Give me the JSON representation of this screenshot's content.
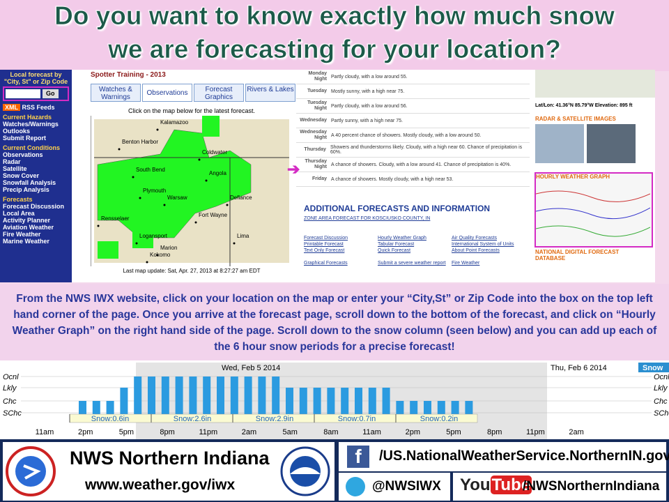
{
  "header": {
    "title_lines": [
      "Do you want to know exactly how much snow",
      "we are forecasting for your location?"
    ]
  },
  "nav": {
    "lookup": "Local forecast by \"City, St\" or Zip Code",
    "go": "Go",
    "xml": "XML",
    "rss": "RSS Feeds",
    "sections": [
      {
        "heading": "Current Hazards",
        "items": [
          "Watches/Warnings",
          "Outlooks",
          "Submit Report"
        ]
      },
      {
        "heading": "Current Conditions",
        "items": [
          "Observations",
          "Radar",
          "Satellite",
          "Snow Cover",
          "Snowfall Analysis",
          "Precip Analysis"
        ]
      },
      {
        "heading": "Forecasts",
        "items": [
          "Forecast Discussion",
          "Local Area",
          "Activity Planner",
          "Aviation Weather",
          "Fire Weather",
          "Marine Weather"
        ]
      }
    ]
  },
  "map": {
    "section": "Spotter Training - 2013",
    "tabs": [
      "Watches & Warnings",
      "Observations",
      "Forecast Graphics",
      "Rivers & Lakes"
    ],
    "instruction": "Click on the map below for the latest forecast.",
    "cities": [
      "Kalamazoo",
      "Benton Harbor",
      "Coldwater",
      "South Bend",
      "Angola",
      "Plymouth",
      "Warsaw",
      "Defiance",
      "Fort Wayne",
      "Rensselaer",
      "Logansport",
      "Lima",
      "Marion",
      "Kokomo"
    ],
    "update": "Last map update: Sat, Apr. 27, 2013 at 8:27:27 am EDT"
  },
  "forecast": {
    "periods": [
      {
        "name": "Monday Night",
        "text": "Partly cloudy, with a low around 55."
      },
      {
        "name": "Tuesday",
        "text": "Mostly sunny, with a high near 75."
      },
      {
        "name": "Tuesday Night",
        "text": "Partly cloudy, with a low around 56."
      },
      {
        "name": "Wednesday",
        "text": "Partly sunny, with a high near 75."
      },
      {
        "name": "Wednesday Night",
        "text": "A 40 percent chance of showers. Mostly cloudy, with a low around 50."
      },
      {
        "name": "Thursday",
        "text": "Showers and thunderstorms likely. Cloudy, with a high near 60. Chance of precipitation is 60%."
      },
      {
        "name": "Thursday Night",
        "text": "A chance of showers. Cloudy, with a low around 41. Chance of precipitation is 40%."
      },
      {
        "name": "Friday",
        "text": "A chance of showers. Mostly cloudy, with a high near 53."
      }
    ],
    "heading": "ADDITIONAL FORECASTS AND INFORMATION",
    "zone": "ZONE AREA FORECAST FOR KOSCIUSKO COUNTY, IN",
    "links": [
      "Forecast Discussion",
      "Printable Forecast",
      "Text Only Forecast",
      "Hourly Weather Graph",
      "Tabular Forecast",
      "Quick Forecast",
      "Air Quality Forecasts",
      "International System of Units",
      "About Point Forecasts",
      "Graphical Forecasts",
      "Submit a severe weather report",
      "Fire Weather"
    ]
  },
  "sidebar": {
    "latlon": "Lat/Lon: 41.36°N 85.79°W",
    "elevation": "Elevation: 895 ft",
    "radar": "RADAR & SATELLITE IMAGES",
    "hourly": "HOURLY WEATHER GRAPH",
    "ndfd": "NATIONAL DIGITAL FORECAST DATABASE"
  },
  "instructions": "From the NWS IWX website, click on your location on the map or enter your “City,St” or Zip Code into the box on the top left hand corner of the page. Once you arrive at the forecast page, scroll down to the bottom of the forecast, and click on “Hourly Weather Graph” on the right hand side of the page. Scroll down to the snow column (seen below) and you can add up each of the 6 hour snow periods for a precise forecast!",
  "snow_chart": {
    "levels": [
      "Ocnl",
      "Lkly",
      "Chc",
      "SChc"
    ],
    "days": [
      "Wed, Feb 5 2014",
      "Thu, Feb 6 2014"
    ],
    "legend": "Snow",
    "times": [
      "11am",
      "2pm",
      "5pm",
      "8pm",
      "11pm",
      "2am",
      "5am",
      "8am",
      "11am",
      "2pm",
      "5pm",
      "8pm",
      "11pm",
      "2am"
    ],
    "bars": [
      "Chc",
      "Chc",
      "Chc",
      "Lkly",
      "Ocnl",
      "Ocnl",
      "Ocnl",
      "Ocnl",
      "Ocnl",
      "Ocnl",
      "Ocnl",
      "Ocnl",
      "Ocnl",
      "Ocnl",
      "Ocnl",
      "Lkly",
      "Lkly",
      "Lkly",
      "Lkly",
      "Lkly",
      "Lkly",
      "Lkly",
      "Lkly",
      "Chc",
      "Chc",
      "Chc",
      "Chc",
      "Chc",
      "Chc"
    ],
    "totals": [
      "Snow:0.6in",
      "Snow:2.6in",
      "Snow:2.9in",
      "Snow:0.7in",
      "Snow:0.2in"
    ]
  },
  "footer": {
    "office": "NWS Northern Indiana",
    "url": "www.weather.gov/iwx",
    "facebook": "/US.NationalWeatherService.NorthernIN.gov",
    "twitter": "@NWSIWX",
    "youtube": "/NWSNorthernIndiana"
  }
}
